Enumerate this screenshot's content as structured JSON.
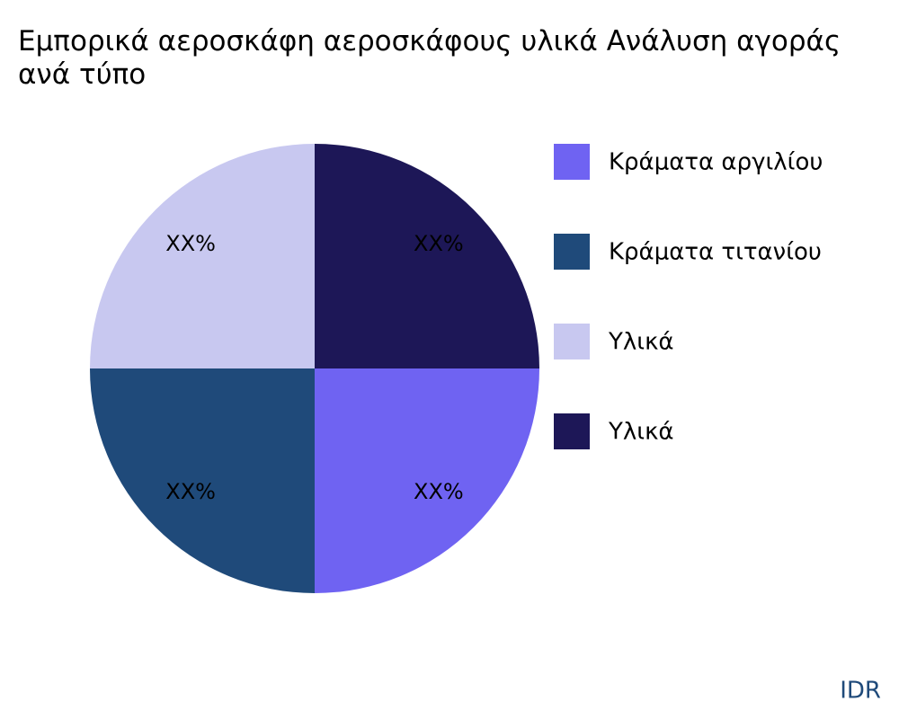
{
  "chart_data": {
    "type": "pie",
    "title": "Εμπορικά αεροσκάφη αεροσκάφους υλικά Ανάλυση αγοράς\nανά τύπο",
    "categories": [
      "Κράματα αργιλίου",
      "Κράματα τιτανίου",
      "Υλικά",
      "Υλικά"
    ],
    "values": [
      25,
      25,
      25,
      25
    ],
    "value_labels": [
      "XX%",
      "XX%",
      "XX%",
      "XX%"
    ],
    "colors": [
      "#6f63f2",
      "#1f4a7a",
      "#c8c8f0",
      "#1d1757"
    ],
    "legend": "right",
    "watermark": "IDR"
  }
}
